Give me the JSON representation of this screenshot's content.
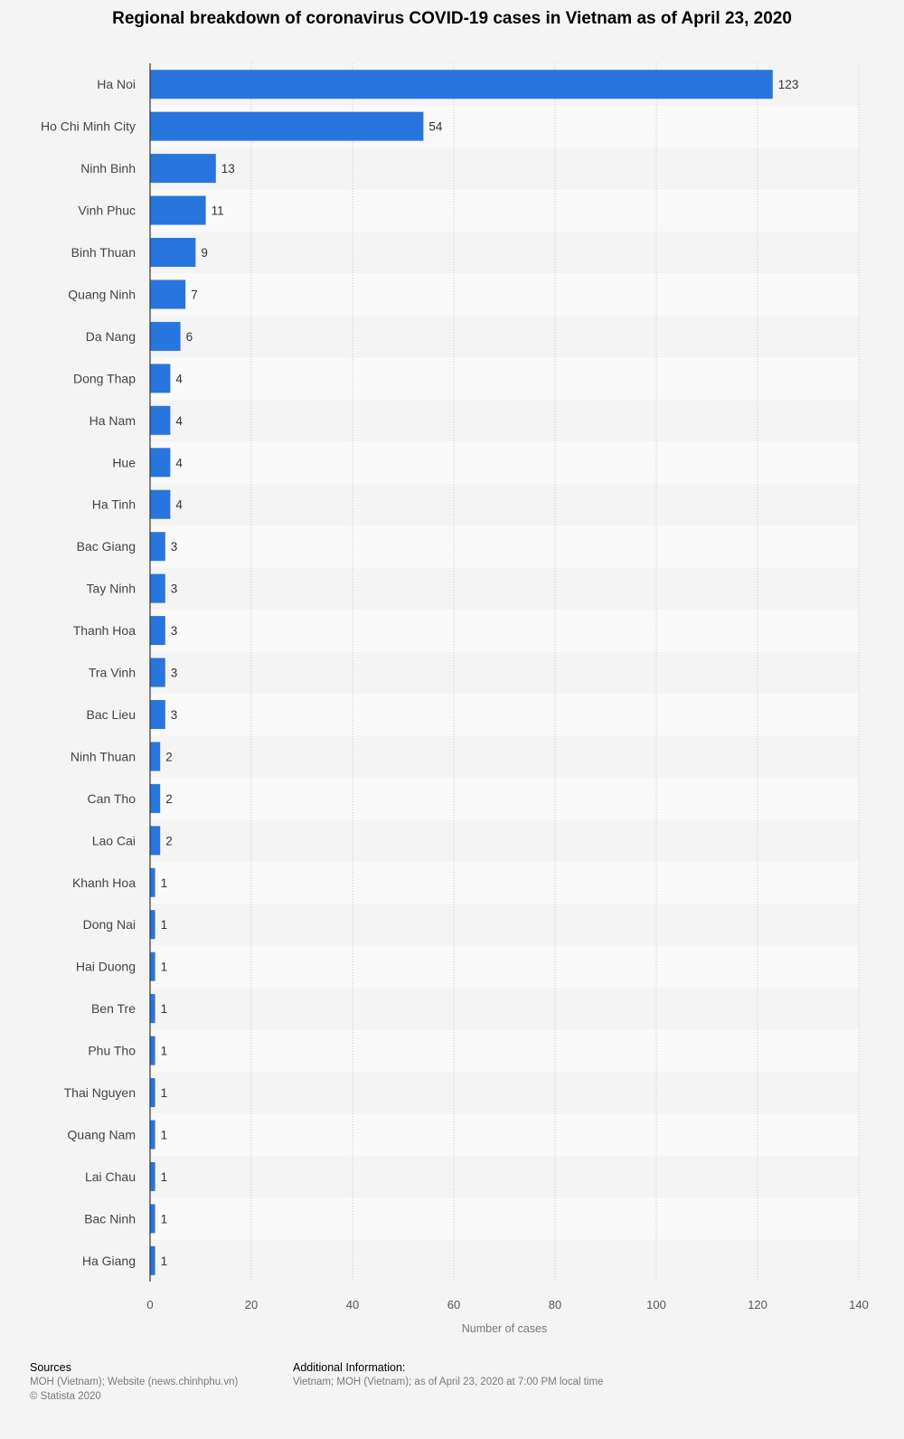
{
  "chart_data": {
    "type": "bar",
    "orientation": "horizontal",
    "title": "Regional breakdown of coronavirus COVID-19 cases in Vietnam as of April 23, 2020",
    "xlabel": "Number of cases",
    "ylabel": "",
    "xlim": [
      0,
      140
    ],
    "xticks": [
      0,
      20,
      40,
      60,
      80,
      100,
      120,
      140
    ],
    "grid": true,
    "categories": [
      "Ha Noi",
      "Ho Chi Minh City",
      "Ninh Binh",
      "Vinh Phuc",
      "Binh Thuan",
      "Quang Ninh",
      "Da Nang",
      "Dong Thap",
      "Ha Nam",
      "Hue",
      "Ha Tinh",
      "Bac Giang",
      "Tay Ninh",
      "Thanh Hoa",
      "Tra Vinh",
      "Bac Lieu",
      "Ninh Thuan",
      "Can Tho",
      "Lao Cai",
      "Khanh Hoa",
      "Dong Nai",
      "Hai Duong",
      "Ben Tre",
      "Phu Tho",
      "Thai Nguyen",
      "Quang Nam",
      "Lai Chau",
      "Bac Ninh",
      "Ha Giang"
    ],
    "values": [
      123,
      54,
      13,
      11,
      9,
      7,
      6,
      4,
      4,
      4,
      4,
      3,
      3,
      3,
      3,
      3,
      2,
      2,
      2,
      1,
      1,
      1,
      1,
      1,
      1,
      1,
      1,
      1,
      1
    ]
  },
  "colors": {
    "bar": "#2876dd",
    "stripe": "#f9f9f9",
    "grid": "#c8c8c8"
  },
  "footer": {
    "sources_head": "Sources",
    "sources_line1": "MOH (Vietnam); Website (news.chinhphu.vn)",
    "sources_line2": "© Statista 2020",
    "additional_head": "Additional Information:",
    "additional_line1": "Vietnam; MOH (Vietnam); as of April 23, 2020 at 7:00 PM local time"
  }
}
